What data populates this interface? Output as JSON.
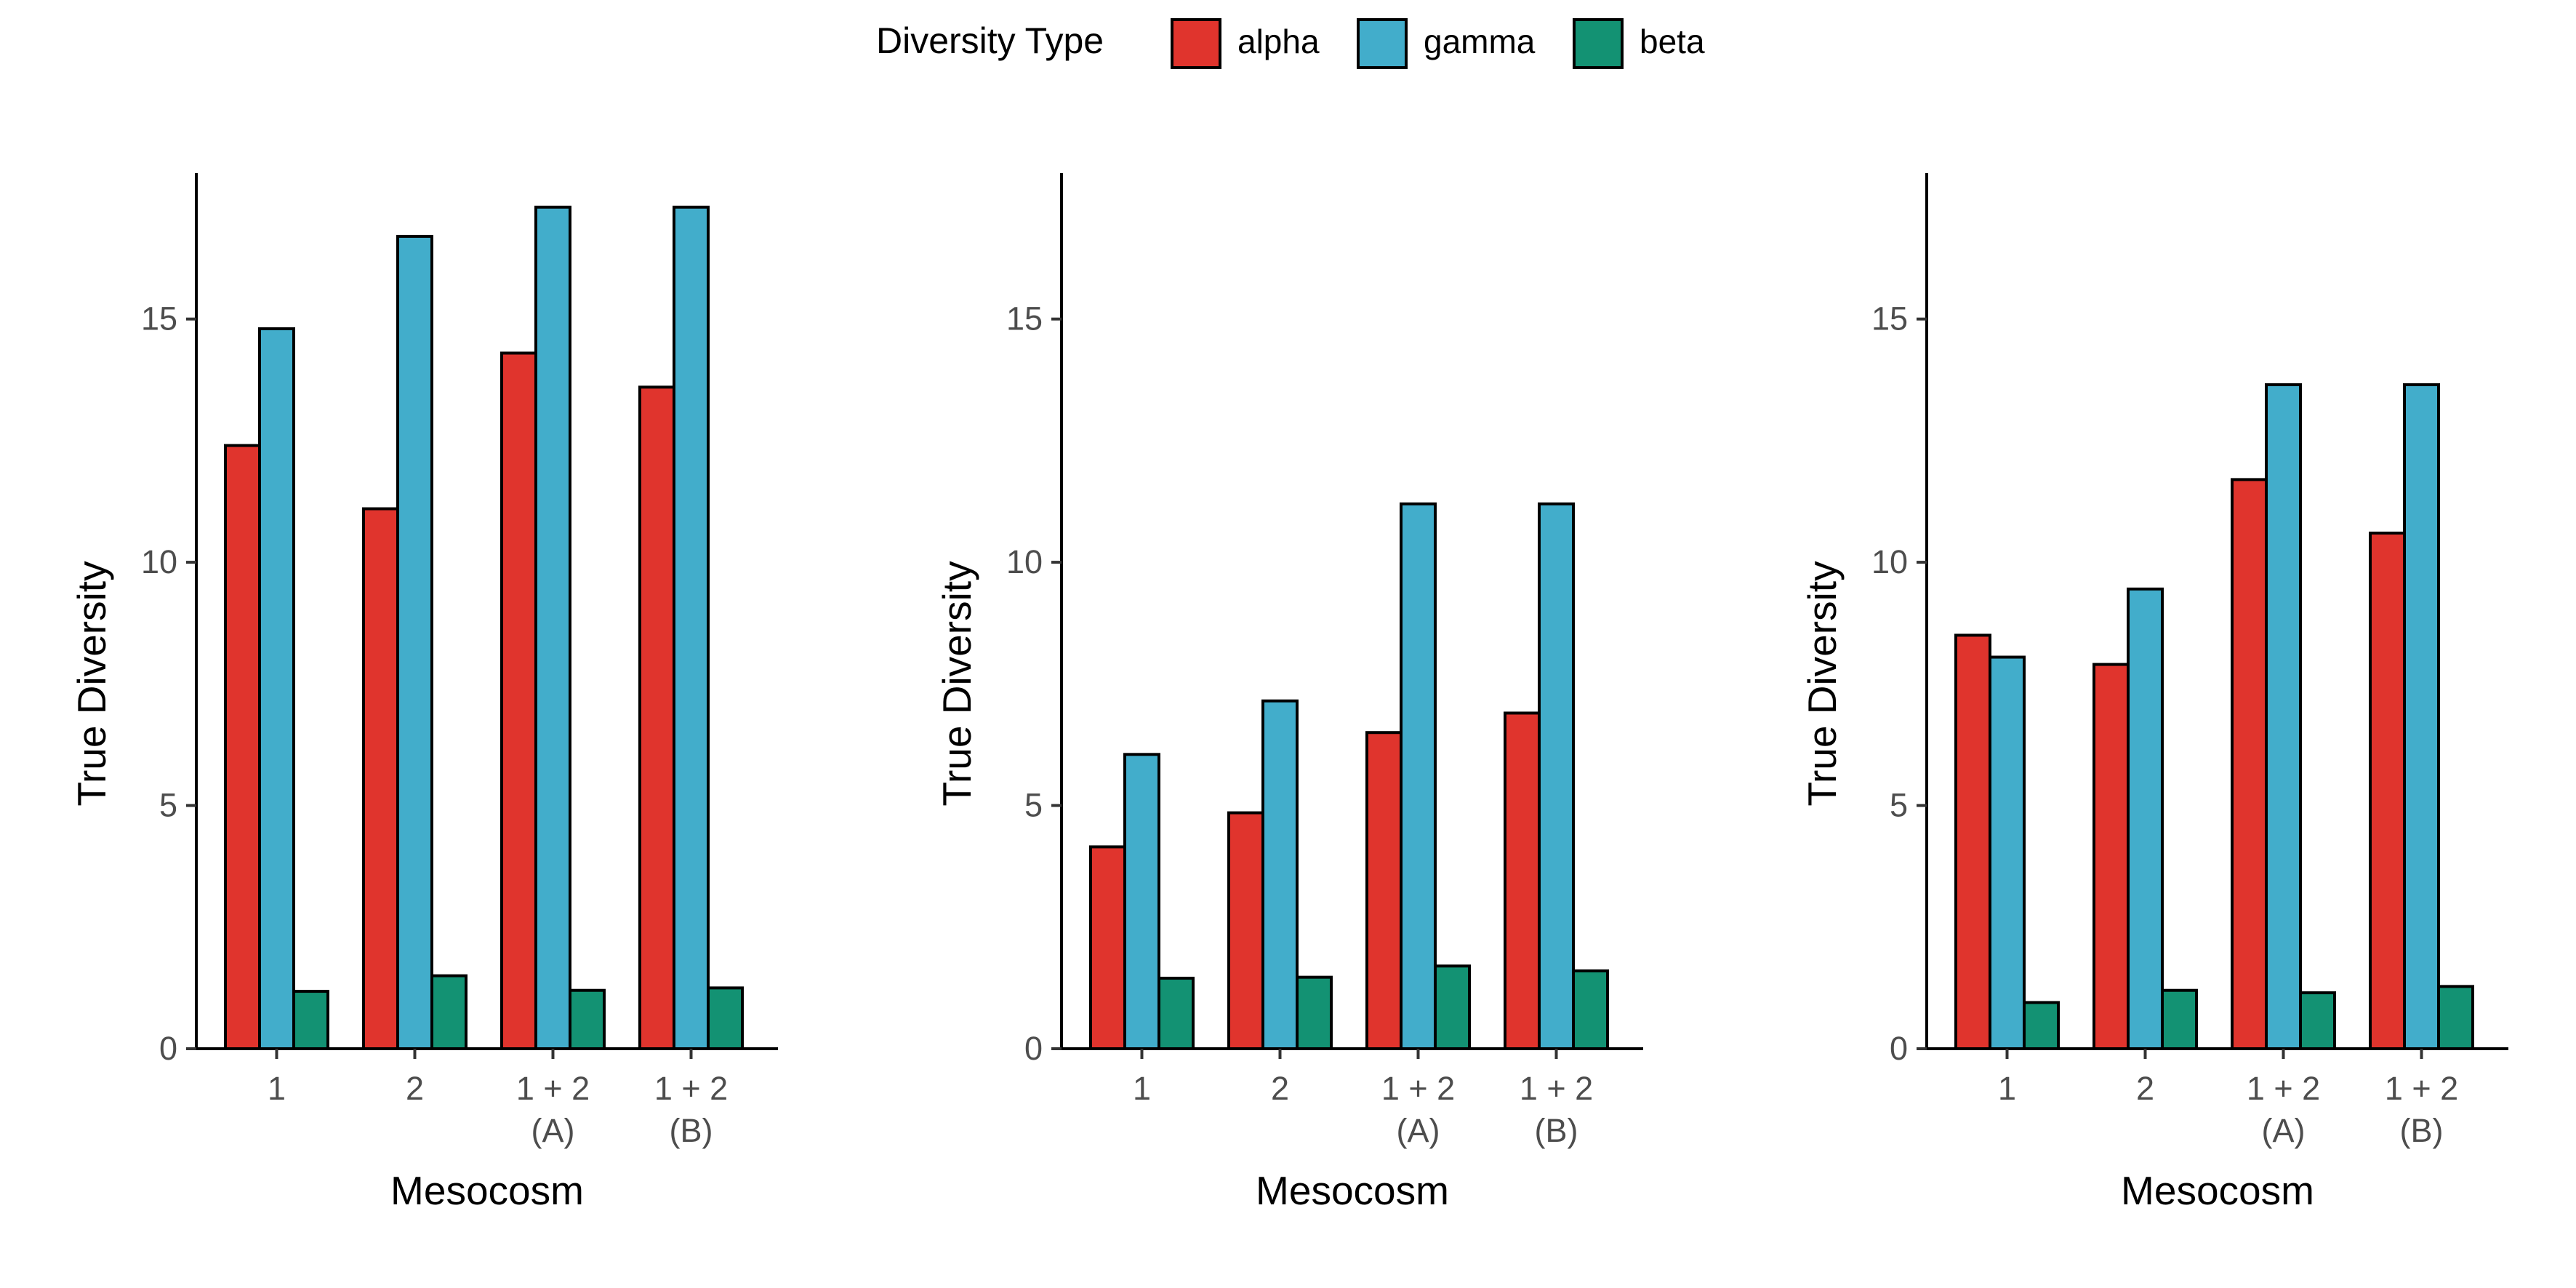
{
  "legend": {
    "title": "Diversity Type",
    "position": "top",
    "entries": [
      {
        "key": "alpha",
        "label": "alpha",
        "color": "#E0342D"
      },
      {
        "key": "gamma",
        "label": "gamma",
        "color": "#42ADCB"
      },
      {
        "key": "beta",
        "label": "beta",
        "color": "#139273"
      }
    ]
  },
  "chart_data": [
    {
      "type": "bar",
      "xlabel": "Mesocosm",
      "ylabel": "True Diversity",
      "ylim": [
        0,
        18
      ],
      "yticks": [
        0,
        5,
        10,
        15
      ],
      "categories": [
        "1 + 2\n(A)",
        "1 + 2\n(B)",
        "1",
        "2"
      ],
      "category_order": [
        "1",
        "2",
        "1 + 2\n(A)",
        "1 + 2\n(B)"
      ],
      "grid": false,
      "series": [
        {
          "name": "alpha",
          "values": [
            14.3,
            13.6,
            12.4,
            11.1
          ]
        },
        {
          "name": "gamma",
          "values": [
            17.3,
            17.3,
            14.8,
            16.7
          ]
        },
        {
          "name": "beta",
          "values": [
            1.2,
            1.25,
            1.18,
            1.5
          ]
        }
      ]
    },
    {
      "type": "bar",
      "xlabel": "Mesocosm",
      "ylabel": "True Diversity",
      "ylim": [
        0,
        18
      ],
      "yticks": [
        0,
        5,
        10,
        15
      ],
      "categories": [
        "1 + 2\n(A)",
        "1 + 2\n(B)",
        "1",
        "2"
      ],
      "category_order": [
        "1",
        "2",
        "1 + 2\n(A)",
        "1 + 2\n(B)"
      ],
      "grid": false,
      "series": [
        {
          "name": "alpha",
          "values": [
            6.5,
            6.9,
            4.15,
            4.85
          ]
        },
        {
          "name": "gamma",
          "values": [
            11.2,
            11.2,
            6.05,
            7.15
          ]
        },
        {
          "name": "beta",
          "values": [
            1.7,
            1.6,
            1.45,
            1.47
          ]
        }
      ]
    },
    {
      "type": "bar",
      "xlabel": "Mesocosm",
      "ylabel": "True Diversity",
      "ylim": [
        0,
        18
      ],
      "yticks": [
        0,
        5,
        10,
        15
      ],
      "categories": [
        "1 + 2\n(A)",
        "1 + 2\n(B)",
        "1",
        "2"
      ],
      "category_order": [
        "1",
        "2",
        "1 + 2\n(A)",
        "1 + 2\n(B)"
      ],
      "grid": false,
      "series": [
        {
          "name": "alpha",
          "values": [
            11.7,
            10.6,
            8.5,
            7.9
          ]
        },
        {
          "name": "gamma",
          "values": [
            13.65,
            13.65,
            8.05,
            9.45
          ]
        },
        {
          "name": "beta",
          "values": [
            1.15,
            1.28,
            0.95,
            1.2
          ]
        }
      ]
    }
  ]
}
